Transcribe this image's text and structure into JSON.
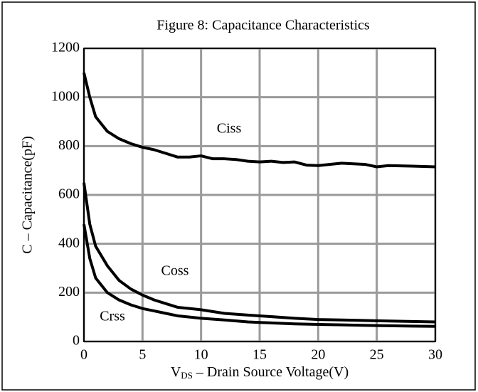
{
  "chart_data": {
    "type": "line",
    "title": "Figure 8: Capacitance Characteristics",
    "ylabel": "C – Capacitance(pF)",
    "xlabel": {
      "main": "V",
      "sub": "DS",
      "rest": " – Drain Source Voltage(V)"
    },
    "xlim": [
      0,
      30
    ],
    "xticks": [
      0,
      5,
      10,
      15,
      20,
      25,
      30
    ],
    "ylim": [
      0,
      1200
    ],
    "yticks": [
      0,
      200,
      400,
      600,
      800,
      1000,
      1200
    ],
    "grid": true,
    "grid_color": "#9a9a9a",
    "annotations": [
      "Ciss",
      "Coss",
      "Crss"
    ],
    "series": [
      {
        "name": "Ciss",
        "color": "#000000",
        "x": [
          0,
          0.5,
          1,
          2,
          3,
          4,
          5,
          6,
          7,
          8,
          9,
          10,
          11,
          12,
          13,
          14,
          15,
          16,
          17,
          18,
          19,
          20,
          22,
          24,
          25,
          26,
          28,
          30
        ],
        "values": [
          1100,
          1000,
          920,
          860,
          830,
          810,
          795,
          785,
          770,
          755,
          755,
          760,
          748,
          748,
          745,
          738,
          735,
          738,
          733,
          735,
          722,
          720,
          730,
          725,
          715,
          720,
          718,
          715
        ]
      },
      {
        "name": "Coss",
        "color": "#000000",
        "x": [
          0,
          0.5,
          1,
          2,
          3,
          4,
          5,
          6,
          7,
          8,
          9,
          10,
          12,
          14,
          15,
          18,
          20,
          22,
          25,
          28,
          30
        ],
        "values": [
          650,
          480,
          390,
          310,
          250,
          215,
          190,
          170,
          155,
          140,
          135,
          130,
          115,
          108,
          105,
          95,
          90,
          88,
          85,
          82,
          80
        ]
      },
      {
        "name": "Crss",
        "color": "#000000",
        "x": [
          0,
          0.5,
          1,
          2,
          3,
          4,
          5,
          6,
          7,
          8,
          9,
          10,
          12,
          14,
          15,
          18,
          20,
          22,
          25,
          28,
          30
        ],
        "values": [
          480,
          340,
          260,
          200,
          170,
          150,
          135,
          125,
          115,
          105,
          100,
          95,
          88,
          80,
          78,
          72,
          70,
          68,
          65,
          63,
          62
        ]
      }
    ]
  }
}
